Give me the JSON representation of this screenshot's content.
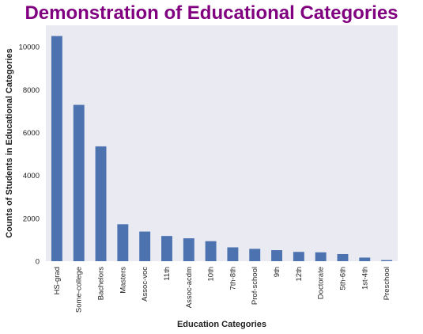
{
  "chart_data": {
    "type": "bar",
    "title": "Demonstration of Educational Categories",
    "xlabel": "Education Categories",
    "ylabel": "Counts of Students in Educational Categories",
    "categories": [
      "HS-grad",
      "Some-college",
      "Bachelors",
      "Masters",
      "Assoc-voc",
      "11th",
      "Assoc-acdm",
      "10th",
      "7th-8th",
      "Prof-school",
      "9th",
      "12th",
      "Doctorate",
      "5th-6th",
      "1st-4th",
      "Preschool"
    ],
    "values": [
      10501,
      7291,
      5355,
      1723,
      1382,
      1175,
      1067,
      933,
      646,
      576,
      514,
      433,
      413,
      333,
      168,
      51
    ],
    "ylim": [
      0,
      11000
    ],
    "yticks": [
      0,
      2000,
      4000,
      6000,
      8000,
      10000
    ],
    "grid": false,
    "colors": {
      "bar": "#4c72b0",
      "plot_bg": "#eaeaf2",
      "title": "#800080"
    }
  }
}
